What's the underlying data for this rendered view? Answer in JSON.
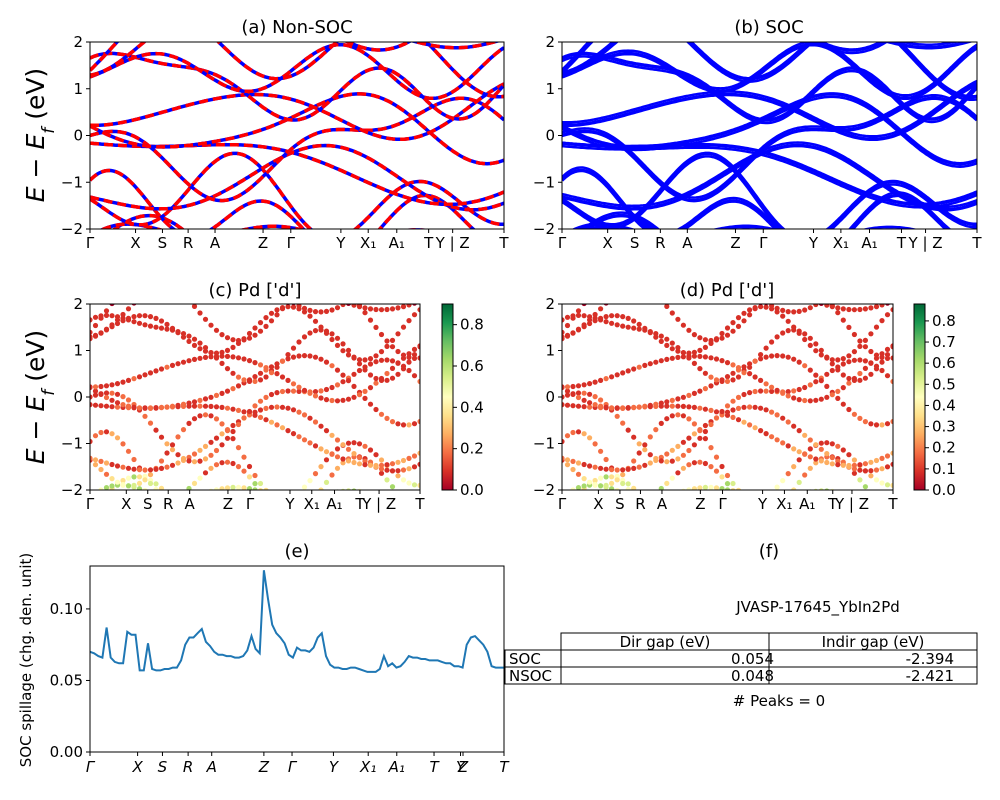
{
  "band_tick_labels": [
    "Γ",
    "X",
    "S",
    "R",
    "A",
    "Z",
    "Γ",
    "Y",
    "X₁",
    "A₁",
    "T",
    "Y | Z",
    "T"
  ],
  "spill_tick_labels": [
    "Γ",
    "X",
    "S",
    "R",
    "A",
    "Z",
    "Γ",
    "Y",
    "X₁",
    "A₁",
    "T",
    "Y",
    "Z",
    "T"
  ],
  "colors": {
    "nsoc_line": "#0000ff",
    "nsoc_dash": "#ff0000",
    "soc_line": "#0000ff",
    "spillage": "#1f77b4"
  },
  "chart_data": [
    {
      "id": "a",
      "type": "line",
      "title": "(a) Non-SOC",
      "ylabel": "E − E_f (eV)",
      "ylim": [
        -2,
        2
      ],
      "yticks": [
        -2,
        -1,
        0,
        1,
        2
      ],
      "series_style": "blue solid with red dashed overlay"
    },
    {
      "id": "b",
      "type": "line",
      "title": "(b) SOC",
      "ylim": [
        -2,
        2
      ],
      "yticks": [
        -2,
        -1,
        0,
        1,
        2
      ]
    },
    {
      "id": "c",
      "type": "scatter",
      "title": "(c)  Pd ['d']",
      "ylabel": "E − E_f (eV)",
      "ylim": [
        -2,
        2
      ],
      "yticks": [
        -2,
        -1,
        0,
        1,
        2
      ],
      "colorbar": {
        "colormap": "RdYlGn",
        "range": [
          0,
          0.9
        ],
        "ticks": [
          "0.0",
          "0.2",
          "0.4",
          "0.6",
          "0.8"
        ]
      }
    },
    {
      "id": "d",
      "type": "scatter",
      "title": "(d) Pd ['d']",
      "ylim": [
        -2,
        2
      ],
      "yticks": [
        -2,
        -1,
        0,
        1,
        2
      ],
      "colorbar": {
        "colormap": "RdYlGn",
        "range": [
          0,
          0.88
        ],
        "ticks": [
          "0.0",
          "0.1",
          "0.2",
          "0.3",
          "0.4",
          "0.5",
          "0.6",
          "0.7",
          "0.8"
        ]
      }
    },
    {
      "id": "e",
      "type": "line",
      "title": "(e)",
      "ylabel": "SOC spillage (chg. den. unit)",
      "ylim": [
        0,
        0.13
      ],
      "yticks": [
        "0.00",
        "0.05",
        "0.10"
      ],
      "x": [
        0,
        1,
        2,
        3,
        4,
        5,
        6,
        7,
        8,
        9,
        10,
        11,
        12,
        13,
        14,
        15,
        16,
        17,
        18,
        19,
        20,
        21,
        22,
        23,
        24,
        25,
        26,
        27,
        28,
        29,
        30,
        31,
        32,
        33,
        34,
        35,
        36,
        37,
        38,
        39,
        40,
        41,
        42,
        43,
        44,
        45,
        46,
        47,
        48,
        49,
        50,
        51,
        52,
        53,
        54,
        55,
        56,
        57,
        58,
        59,
        60,
        61,
        62,
        63,
        64,
        65,
        66,
        67,
        68,
        69,
        70,
        71,
        72,
        73,
        74,
        75,
        76,
        77,
        78,
        79,
        80,
        81,
        82,
        83,
        84,
        85,
        86,
        87,
        88,
        89,
        90,
        91,
        92,
        93,
        94,
        95,
        96,
        97,
        98,
        99,
        100
      ],
      "y": [
        0.07,
        0.069,
        0.067,
        0.066,
        0.087,
        0.066,
        0.063,
        0.062,
        0.062,
        0.084,
        0.082,
        0.082,
        0.057,
        0.057,
        0.076,
        0.058,
        0.057,
        0.057,
        0.058,
        0.058,
        0.059,
        0.059,
        0.064,
        0.075,
        0.08,
        0.08,
        0.083,
        0.086,
        0.077,
        0.074,
        0.07,
        0.068,
        0.068,
        0.067,
        0.067,
        0.066,
        0.066,
        0.067,
        0.071,
        0.081,
        0.072,
        0.069,
        0.127,
        0.107,
        0.089,
        0.083,
        0.08,
        0.076,
        0.068,
        0.066,
        0.073,
        0.071,
        0.071,
        0.07,
        0.073,
        0.08,
        0.083,
        0.067,
        0.061,
        0.059,
        0.059,
        0.058,
        0.058,
        0.059,
        0.059,
        0.058,
        0.057,
        0.056,
        0.056,
        0.056,
        0.058,
        0.067,
        0.06,
        0.062,
        0.059,
        0.06,
        0.063,
        0.067,
        0.066,
        0.066,
        0.065,
        0.065,
        0.064,
        0.064,
        0.064,
        0.063,
        0.062,
        0.062,
        0.06,
        0.06,
        0.059,
        0.075,
        0.08,
        0.081,
        0.078,
        0.075,
        0.07,
        0.06,
        0.059,
        0.059,
        0.059
      ]
    },
    {
      "id": "f",
      "type": "table",
      "title": "(f)",
      "caption": "JVASP-17645_YbIn2Pd",
      "columns": [
        "Dir gap (eV)",
        "Indir gap (eV)"
      ],
      "rows": [
        {
          "label": "SOC",
          "values": [
            "0.054",
            "-2.394"
          ]
        },
        {
          "label": "NSOC",
          "values": [
            "0.048",
            "-2.421"
          ]
        }
      ],
      "footer": "# Peaks = 0"
    }
  ]
}
